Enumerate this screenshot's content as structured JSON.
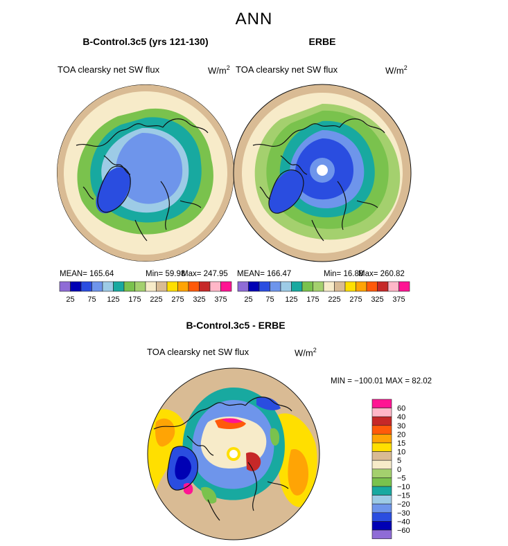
{
  "page": {
    "title": "ANN"
  },
  "colors": {
    "scale": [
      "#8f6cd6",
      "#0000b4",
      "#2a4de0",
      "#6e95eb",
      "#9dcbe6",
      "#18a9a0",
      "#7ac24d",
      "#a4d06e",
      "#f7ebc9",
      "#d9bb94",
      "#ffdf00",
      "#ffa405",
      "#ff5a0a",
      "#c62828",
      "#ffb7c8",
      "#ff1493"
    ],
    "diff": [
      "#8f6cd6",
      "#0000b4",
      "#2a4de0",
      "#6e95eb",
      "#9dcbe6",
      "#18a9a0",
      "#7ac24d",
      "#a4d06e",
      "#f7ebc9",
      "#d9bb94",
      "#ffdf00",
      "#ffa405",
      "#ff5a0a",
      "#c62828",
      "#ffb7c8",
      "#ff1493"
    ],
    "coast": "#111111"
  },
  "chart_data": [
    {
      "type": "heatmap",
      "projection": "north-polar-stereographic",
      "title": "B-Control.3c5 (yrs 121-130)",
      "subtitle": "TOA clearsky net SW flux",
      "units": "W/m",
      "units_exp": "2",
      "mean_label": "MEAN=",
      "mean": "165.64",
      "min_label": "Min=",
      "min": "59.98",
      "max_label": "Max=",
      "max": "247.95",
      "contour_levels": [
        25,
        50,
        75,
        100,
        125,
        150,
        175,
        200,
        225,
        250,
        275,
        300,
        325,
        350,
        375
      ],
      "colorbar_labels": [
        "25",
        "75",
        "125",
        "175",
        "225",
        "275",
        "325",
        "375"
      ]
    },
    {
      "type": "heatmap",
      "projection": "north-polar-stereographic",
      "title": "ERBE",
      "subtitle": "TOA clearsky net SW flux",
      "units": "W/m",
      "units_exp": "2",
      "mean_label": "MEAN=",
      "mean": "166.47",
      "min_label": "Min=",
      "min": "16.88",
      "max_label": "Max=",
      "max": "260.82",
      "contour_levels": [
        25,
        50,
        75,
        100,
        125,
        150,
        175,
        200,
        225,
        250,
        275,
        300,
        325,
        350,
        375
      ],
      "colorbar_labels": [
        "25",
        "75",
        "125",
        "175",
        "225",
        "275",
        "325",
        "375"
      ]
    },
    {
      "type": "heatmap",
      "projection": "north-polar-stereographic",
      "title": "B-Control.3c5 - ERBE",
      "subtitle": "TOA clearsky net SW flux",
      "units": "W/m",
      "units_exp": "2",
      "minmax_label": "MIN = −100.01  MAX =  82.02",
      "min": -100.01,
      "max": 82.02,
      "contour_levels": [
        -60,
        -40,
        -30,
        -20,
        -15,
        -10,
        -5,
        0,
        5,
        10,
        15,
        20,
        30,
        40,
        60
      ],
      "colorbar_labels": [
        "60",
        "40",
        "30",
        "20",
        "15",
        "10",
        "5",
        "0",
        "−5",
        "−10",
        "−15",
        "−20",
        "−30",
        "−40",
        "−60"
      ]
    }
  ]
}
